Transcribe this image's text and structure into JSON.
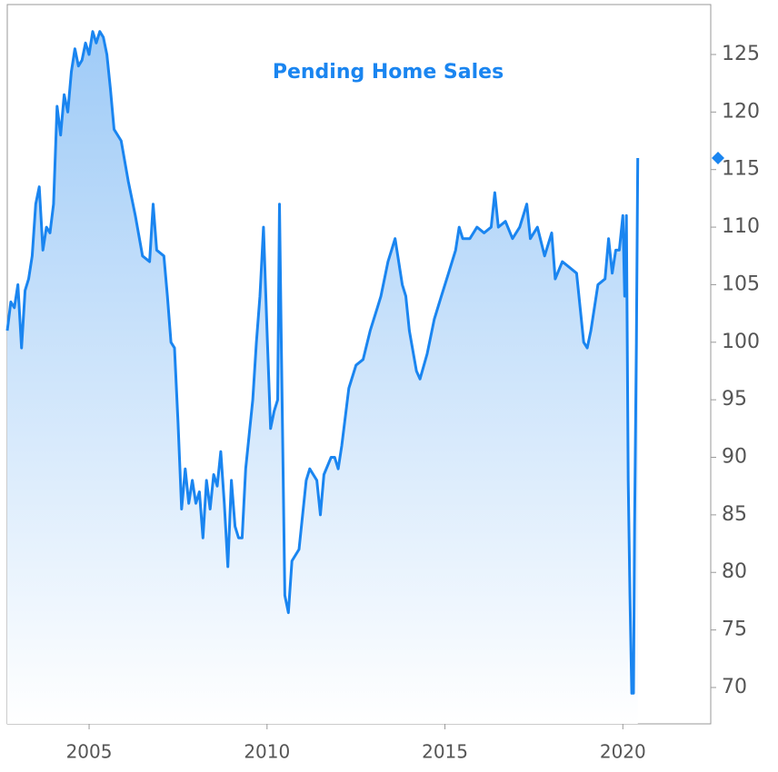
{
  "chart_data": {
    "type": "line",
    "title": "Pending Home Sales",
    "color": "#1a85f0",
    "x": [
      2002.7,
      2002.8,
      2002.9,
      2003.0,
      2003.1,
      2003.2,
      2003.3,
      2003.4,
      2003.5,
      2003.6,
      2003.7,
      2003.8,
      2003.9,
      2004.0,
      2004.1,
      2004.2,
      2004.3,
      2004.4,
      2004.5,
      2004.6,
      2004.7,
      2004.8,
      2004.9,
      2005.0,
      2005.1,
      2005.2,
      2005.3,
      2005.4,
      2005.5,
      2005.6,
      2005.7,
      2005.9,
      2006.1,
      2006.3,
      2006.5,
      2006.7,
      2006.8,
      2006.9,
      2007.1,
      2007.2,
      2007.3,
      2007.4,
      2007.5,
      2007.6,
      2007.7,
      2007.8,
      2007.9,
      2008.0,
      2008.1,
      2008.2,
      2008.3,
      2008.4,
      2008.5,
      2008.6,
      2008.7,
      2008.8,
      2008.9,
      2009.0,
      2009.1,
      2009.2,
      2009.3,
      2009.4,
      2009.5,
      2009.6,
      2009.7,
      2009.8,
      2009.9,
      2010.0,
      2010.1,
      2010.2,
      2010.3,
      2010.35,
      2010.4,
      2010.5,
      2010.6,
      2010.7,
      2010.9,
      2011.1,
      2011.2,
      2011.4,
      2011.5,
      2011.6,
      2011.8,
      2011.9,
      2012.0,
      2012.1,
      2012.3,
      2012.5,
      2012.7,
      2012.9,
      2013.1,
      2013.2,
      2013.4,
      2013.5,
      2013.6,
      2013.8,
      2013.9,
      2014.0,
      2014.2,
      2014.3,
      2014.5,
      2014.7,
      2014.9,
      2015.1,
      2015.3,
      2015.4,
      2015.5,
      2015.7,
      2015.9,
      2016.1,
      2016.3,
      2016.4,
      2016.5,
      2016.7,
      2016.9,
      2017.1,
      2017.3,
      2017.4,
      2017.6,
      2017.8,
      2018.0,
      2018.1,
      2018.3,
      2018.5,
      2018.7,
      2018.8,
      2018.9,
      2019.0,
      2019.1,
      2019.3,
      2019.5,
      2019.6,
      2019.7,
      2019.8,
      2019.9,
      2020.0,
      2020.05,
      2020.1,
      2020.15,
      2020.2,
      2020.25,
      2020.3,
      2020.33,
      2020.38,
      2020.42
    ],
    "values": [
      101,
      103.5,
      103,
      105,
      99.5,
      104.5,
      105.5,
      107.5,
      112,
      113.5,
      108,
      110,
      109.5,
      112,
      120.5,
      118,
      121.5,
      120,
      123.5,
      125.5,
      124,
      124.5,
      126,
      125,
      127,
      126,
      127,
      126.5,
      125,
      122,
      118.5,
      117.5,
      114,
      111,
      107.5,
      107,
      112,
      108,
      107.5,
      104,
      100,
      99.5,
      93,
      85.5,
      89,
      86,
      88,
      86,
      87,
      83,
      88,
      85.5,
      88.5,
      87.5,
      90.5,
      86,
      80.5,
      88,
      84,
      83,
      83,
      89,
      92,
      95,
      100,
      104,
      110,
      101,
      92.5,
      94,
      95,
      112,
      100,
      78,
      76.5,
      81,
      82,
      88,
      89,
      88,
      85,
      88.5,
      90,
      90,
      89,
      91,
      96,
      98,
      98.5,
      101,
      103,
      104,
      107,
      108,
      109,
      105,
      104,
      101,
      97.5,
      96.8,
      99,
      102,
      104,
      106,
      108,
      110,
      109,
      109,
      110,
      109.5,
      110,
      113,
      110,
      110.5,
      109,
      110,
      112,
      109,
      110,
      107.5,
      109.5,
      105.5,
      107,
      106.5,
      106,
      103,
      100,
      99.5,
      101,
      105,
      105.5,
      109,
      106,
      108,
      108,
      111,
      104,
      111,
      88,
      78,
      69.5,
      69.5,
      84,
      100,
      116
    ],
    "xlim": [
      2002.7,
      2022.47
    ],
    "xticks": [
      2005,
      2010,
      2015,
      2020
    ],
    "ylim": [
      66.84,
      129.34
    ],
    "yticks": [
      70,
      75,
      80,
      85,
      90,
      95,
      100,
      105,
      110,
      115,
      120,
      125
    ]
  }
}
